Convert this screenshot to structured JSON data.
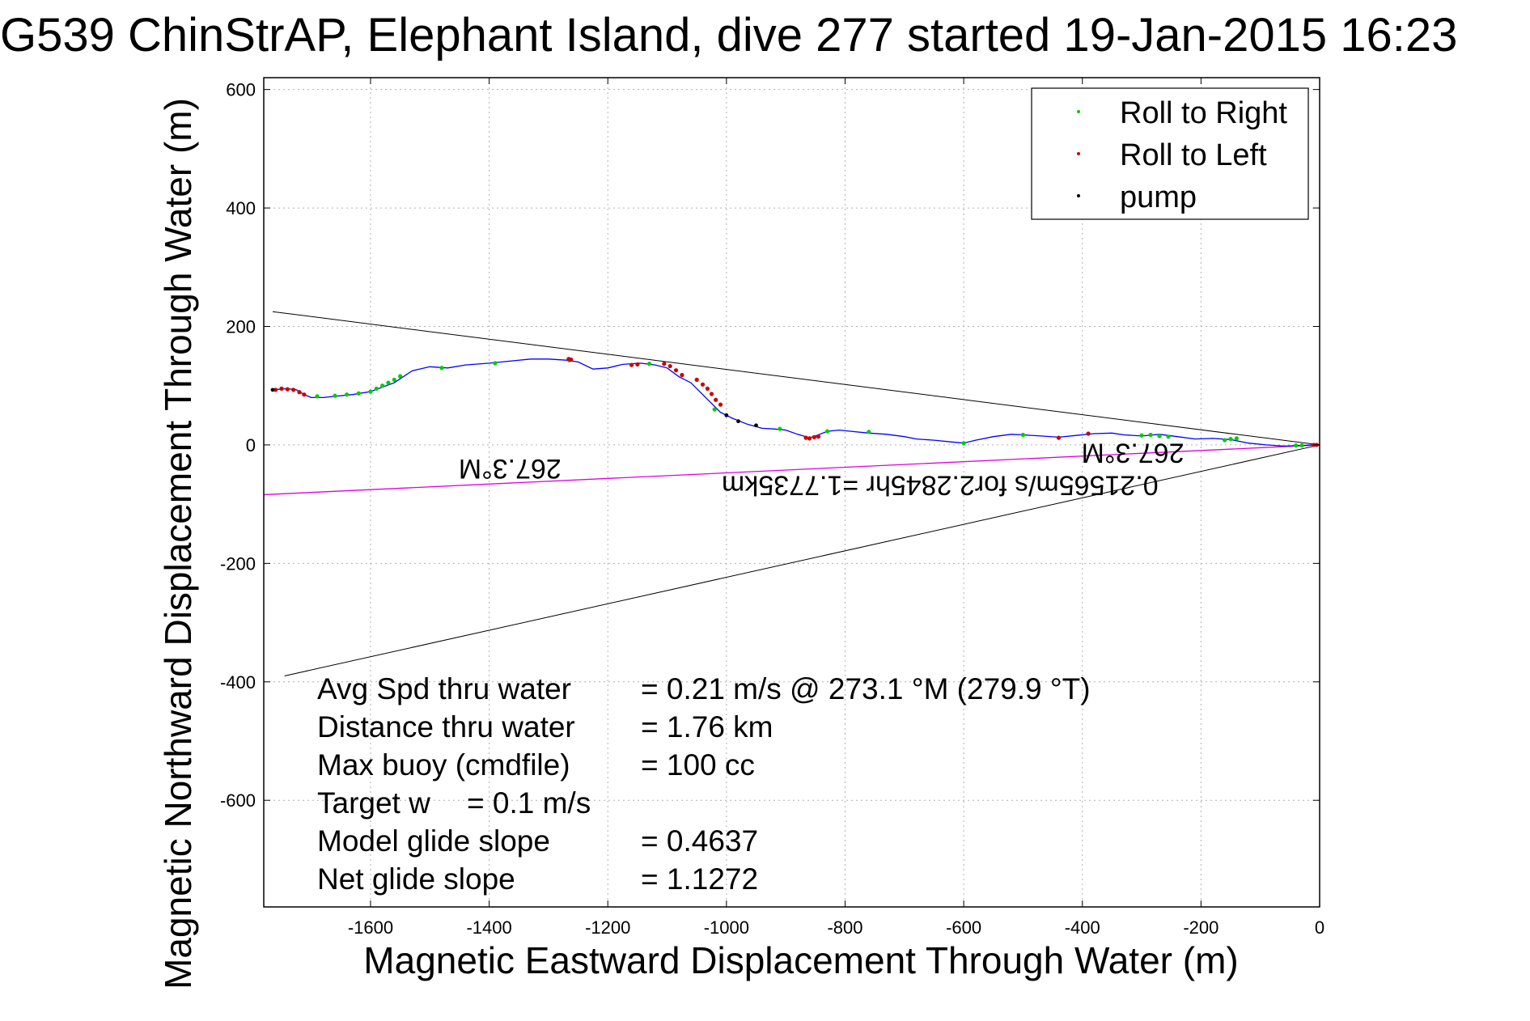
{
  "chart_data": {
    "type": "line",
    "title": "G539 ChinStrAP, Elephant Island, dive 277 started 19-Jan-2015 16:23",
    "xlabel": "Magnetic Eastward Displacement Through Water (m)",
    "ylabel": "Magnetic Northward Displacement Through Water (m)",
    "xlim": [
      -1780,
      0
    ],
    "ylim": [
      -780,
      620
    ],
    "xticks": [
      -1600,
      -1400,
      -1200,
      -1000,
      -800,
      -600,
      -400,
      -200,
      0
    ],
    "yticks": [
      600,
      400,
      200,
      0,
      -200,
      -400,
      -600
    ],
    "grid": true,
    "legend_position": "top-right",
    "legend": [
      {
        "label": "Roll to Right",
        "color": "#00cc00"
      },
      {
        "label": "Roll to Left",
        "color": "#cc0000"
      },
      {
        "label": "pump",
        "color": "#000000"
      }
    ],
    "track": {
      "name": "track",
      "color": "#0000ff",
      "x": [
        -1765,
        -1740,
        -1725,
        -1712,
        -1700,
        -1680,
        -1660,
        -1630,
        -1600,
        -1560,
        -1530,
        -1500,
        -1470,
        -1440,
        -1400,
        -1360,
        -1330,
        -1300,
        -1270,
        -1250,
        -1225,
        -1200,
        -1175,
        -1145,
        -1120,
        -1100,
        -1080,
        -1060,
        -1040,
        -1025,
        -1010,
        -990,
        -965,
        -940,
        -920,
        -900,
        -880,
        -860,
        -850,
        -830,
        -810,
        -790,
        -760,
        -730,
        -700,
        -680,
        -650,
        -620,
        -600,
        -580,
        -550,
        -520,
        -500,
        -470,
        -440,
        -410,
        -380,
        -350,
        -330,
        -300,
        -270,
        -240,
        -210,
        -180,
        -150,
        -120,
        -90,
        -60,
        -30,
        -10,
        0
      ],
      "y": [
        93,
        95,
        93,
        85,
        80,
        80,
        82,
        85,
        90,
        105,
        125,
        132,
        130,
        135,
        138,
        142,
        145,
        145,
        143,
        140,
        128,
        130,
        136,
        138,
        135,
        130,
        115,
        105,
        85,
        70,
        55,
        45,
        35,
        28,
        27,
        25,
        18,
        12,
        15,
        23,
        25,
        23,
        20,
        18,
        14,
        10,
        8,
        5,
        3,
        8,
        14,
        18,
        17,
        15,
        13,
        16,
        19,
        20,
        17,
        15,
        18,
        14,
        10,
        11,
        9,
        3,
        0,
        -2,
        -1,
        0,
        0
      ]
    },
    "roll_right_x": [
      -1690,
      -1660,
      -1640,
      -1620,
      -1600,
      -1590,
      -1580,
      -1570,
      -1560,
      -1550,
      -1480,
      -1390,
      -1265,
      -1130,
      -1020,
      -910,
      -830,
      -760,
      -600,
      -500,
      -300,
      -285,
      -270,
      -255,
      -160,
      -150,
      -140,
      -40,
      -30
    ],
    "roll_right_y": [
      82,
      83,
      85,
      87,
      90,
      95,
      100,
      105,
      110,
      116,
      130,
      138,
      143,
      137,
      60,
      27,
      23,
      22,
      3,
      17,
      16,
      17,
      15,
      14,
      8,
      10,
      11,
      -1,
      -1
    ],
    "roll_left_x": [
      -1760,
      -1750,
      -1740,
      -1730,
      -1720,
      -1712,
      -1266,
      -1262,
      -1160,
      -1150,
      -1105,
      -1095,
      -1085,
      -1075,
      -1050,
      -1040,
      -1032,
      -1025,
      -1018,
      -1010,
      -866,
      -860,
      -852,
      -845,
      -440,
      -390,
      -10,
      -5
    ],
    "roll_left_y": [
      93,
      95,
      94,
      93,
      89,
      85,
      145,
      144,
      135,
      136,
      137,
      133,
      126,
      118,
      110,
      102,
      95,
      86,
      76,
      68,
      12,
      11,
      13,
      14,
      12,
      19,
      0,
      0
    ],
    "pump_x": [
      -1765,
      -1000,
      -980,
      -950
    ],
    "pump_y": [
      93,
      50,
      40,
      33
    ],
    "envelope_lines": [
      {
        "x": [
          -1765,
          0
        ],
        "y": [
          225,
          0
        ]
      },
      {
        "x": [
          -1745,
          0
        ],
        "y": [
          -390,
          0
        ]
      }
    ],
    "heading_line": {
      "color": "#dd00dd",
      "x": [
        -1780,
        0
      ],
      "y": [
        -84,
        0
      ]
    },
    "annotations": [
      {
        "text": "267.3°M",
        "x": -1365,
        "y": -25,
        "rotation": 180
      },
      {
        "text": "267.3°M",
        "x": -315,
        "y": 2,
        "rotation": 180
      },
      {
        "text": "0.21565m/s for2.2845hr =1.7735km",
        "x": -640,
        "y": -53,
        "rotation": 180
      }
    ],
    "stats": [
      {
        "label": "Avg Spd thru water",
        "value": "=  0.21 m/s @ 273.1 °M (279.9 °T)"
      },
      {
        "label": "Distance thru water",
        "value": "=  1.76 km"
      },
      {
        "label": "Max buoy (cmdfile)",
        "value": "= 100 cc"
      },
      {
        "label": "Target w",
        "value": "= 0.1 m/s"
      },
      {
        "label": "Model glide slope",
        "value": "= 0.4637"
      },
      {
        "label": "Net glide slope",
        "value": "= 1.1272"
      }
    ]
  }
}
